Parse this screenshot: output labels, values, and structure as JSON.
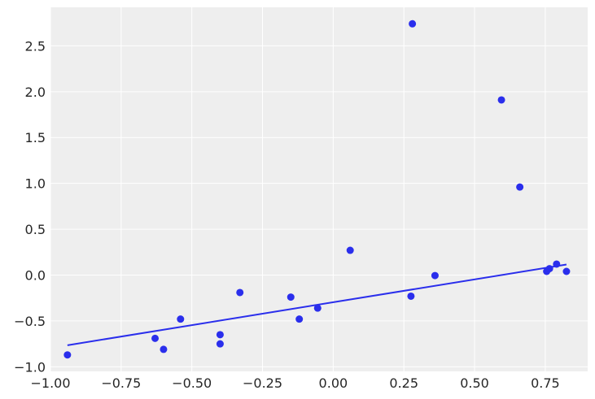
{
  "chart_data": {
    "type": "scatter",
    "title": "",
    "xlabel": "",
    "ylabel": "",
    "xlim": [
      -1.0,
      0.9
    ],
    "ylim": [
      -1.05,
      2.92
    ],
    "grid": true,
    "xticks": [
      -1.0,
      -0.75,
      -0.5,
      -0.25,
      0.0,
      0.25,
      0.5,
      0.75
    ],
    "xtick_labels": [
      "−1.00",
      "−0.75",
      "−0.50",
      "−0.25",
      "0.00",
      "0.25",
      "0.50",
      "0.75"
    ],
    "yticks": [
      -1.0,
      -0.5,
      0.0,
      0.5,
      1.0,
      1.5,
      2.0,
      2.5
    ],
    "ytick_labels": [
      "−1.0",
      "−0.5",
      "0.0",
      "0.5",
      "1.0",
      "1.5",
      "2.0",
      "2.5"
    ],
    "series": [
      {
        "type": "scatter",
        "color": "#2a2eec",
        "x": [
          -0.94,
          -0.63,
          -0.6,
          -0.54,
          -0.4,
          -0.4,
          -0.33,
          -0.15,
          -0.12,
          -0.055,
          0.06,
          0.275,
          0.28,
          0.36,
          0.595,
          0.66,
          0.755,
          0.765,
          0.79,
          0.825
        ],
        "y": [
          -0.87,
          -0.69,
          -0.81,
          -0.48,
          -0.65,
          -0.75,
          -0.19,
          -0.24,
          -0.48,
          -0.36,
          0.27,
          -0.23,
          2.74,
          -0.005,
          1.91,
          0.96,
          0.04,
          0.07,
          0.12,
          0.04
        ]
      },
      {
        "type": "line",
        "color": "#2a2eec",
        "x": [
          -0.94,
          0.825
        ],
        "y": [
          -0.765,
          0.115
        ]
      }
    ]
  }
}
